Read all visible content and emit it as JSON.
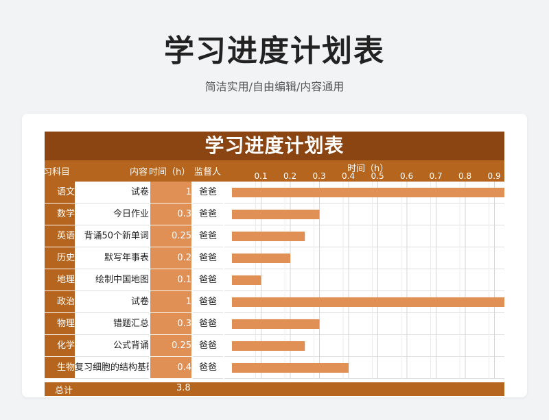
{
  "page": {
    "title": "学习进度计划表",
    "subtitle": "简洁实用/自由编辑/内容通用"
  },
  "sheet": {
    "banner": "学习进度计划表",
    "headers": {
      "subject": "习科目",
      "content": "内容",
      "time": "时间（h）",
      "owner": "监督人",
      "chart": "时间（h）"
    },
    "total_label": "总计",
    "total_value": "3.8"
  },
  "colors": {
    "banner": "#8b4513",
    "header": "#b5651d",
    "bar": "#e08f55"
  },
  "chart_data": {
    "type": "bar",
    "orientation": "horizontal",
    "xlabel": "时间（h）",
    "xlim": [
      0,
      1
    ],
    "ticks": [
      "0.1",
      "0.2",
      "0.3",
      "0.4",
      "0.5",
      "0.6",
      "0.7",
      "0.8",
      "0.9"
    ],
    "grid": true,
    "rows": [
      {
        "subject": "语文",
        "content": "试卷",
        "time": "1",
        "value": 1,
        "owner": "爸爸"
      },
      {
        "subject": "数学",
        "content": "今日作业",
        "time": "0.3",
        "value": 0.3,
        "owner": "爸爸"
      },
      {
        "subject": "英语",
        "content": "背诵50个新单词",
        "time": "0.25",
        "value": 0.25,
        "owner": "爸爸"
      },
      {
        "subject": "历史",
        "content": "默写年事表",
        "time": "0.2",
        "value": 0.2,
        "owner": "爸爸"
      },
      {
        "subject": "地理",
        "content": "绘制中国地图",
        "time": "0.1",
        "value": 0.1,
        "owner": "爸爸"
      },
      {
        "subject": "政治",
        "content": "试卷",
        "time": "1",
        "value": 1,
        "owner": "爸爸"
      },
      {
        "subject": "物理",
        "content": "错题汇总",
        "time": "0.3",
        "value": 0.3,
        "owner": "爸爸"
      },
      {
        "subject": "化学",
        "content": "公式背诵",
        "time": "0.25",
        "value": 0.25,
        "owner": "爸爸"
      },
      {
        "subject": "生物",
        "content": "复习细胞的结构基础",
        "time": "0.4",
        "value": 0.4,
        "owner": "爸爸"
      }
    ]
  }
}
